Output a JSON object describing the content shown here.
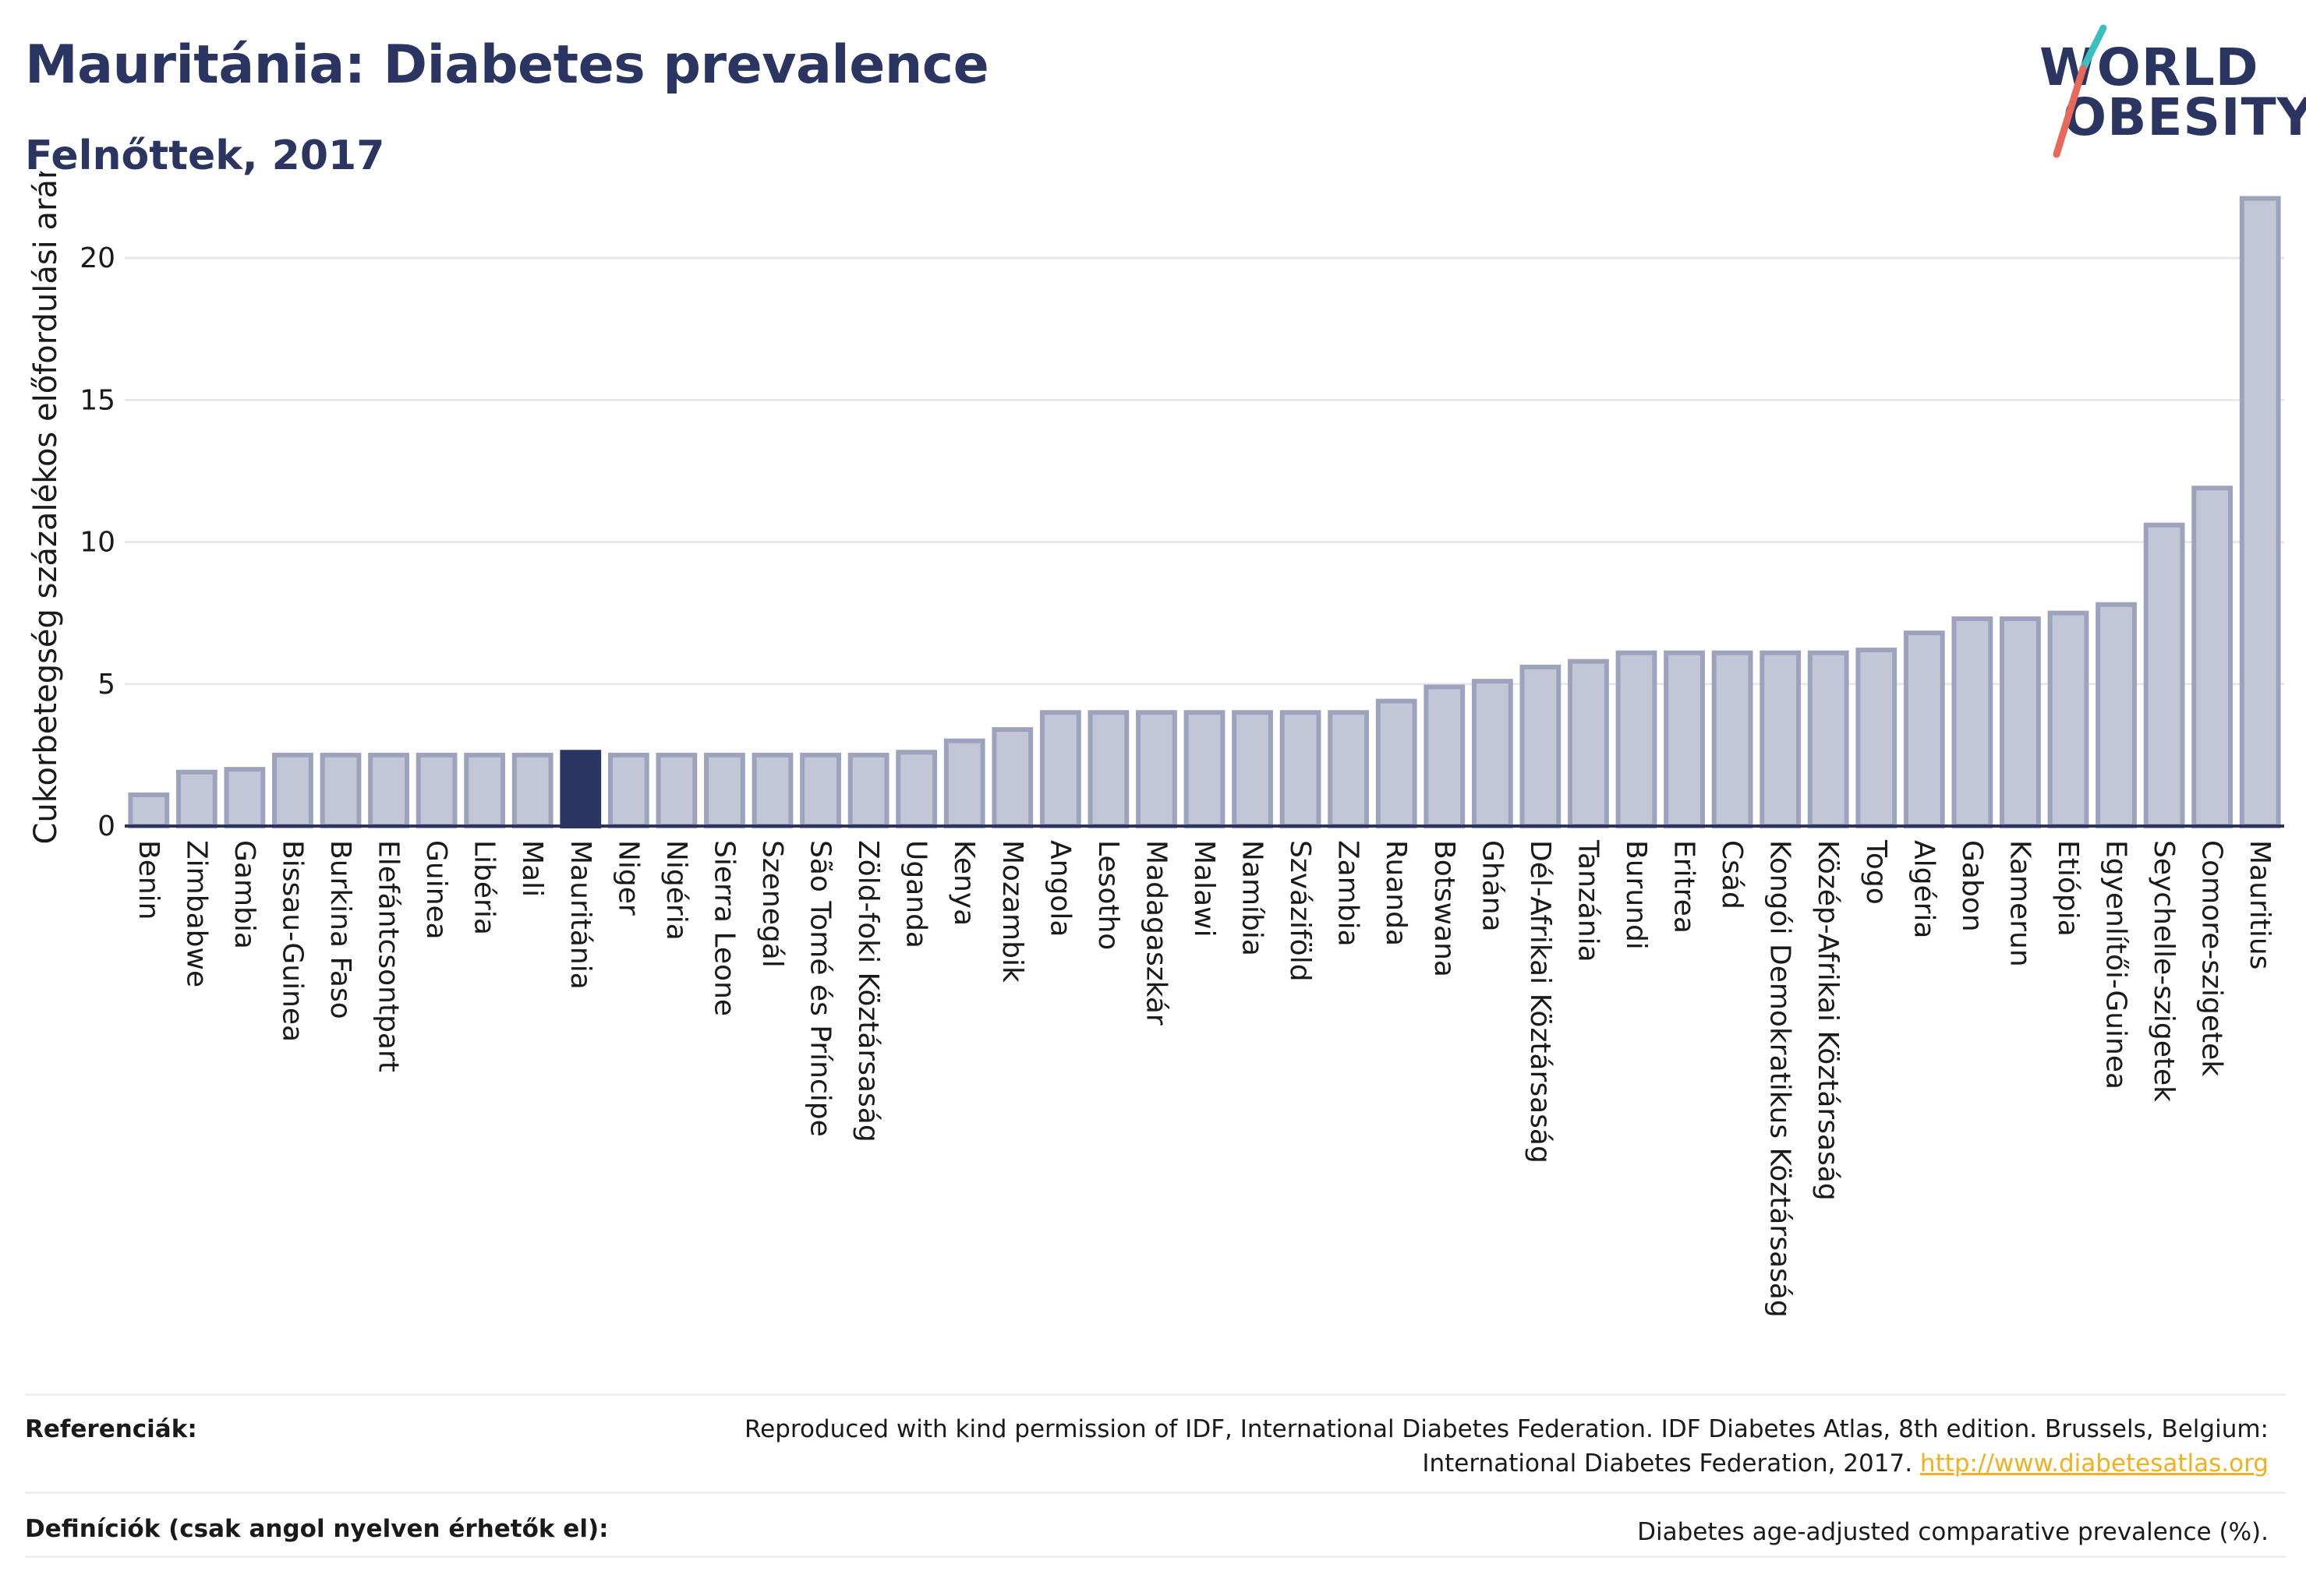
{
  "header": {
    "title": "Mauritánia: Diabetes prevalence",
    "subtitle": "Felnőttek, 2017"
  },
  "logo": {
    "line1": "WORLD",
    "line2": "OBESITY",
    "colors": {
      "text": "#2b3561",
      "slash_top": "#3bbfbf",
      "slash_bottom": "#e8685a"
    }
  },
  "chart_data": {
    "type": "bar",
    "ylabel": "Cukorbetegség százalékos előfordulási aránya",
    "xlabel": "",
    "ylim": [
      0,
      22.5
    ],
    "yticks": [
      0,
      5,
      10,
      15,
      20
    ],
    "grid": true,
    "highlight": "Mauritánia",
    "colors": {
      "bar": "#c2c6d6",
      "bar_edge": "#9da2bd",
      "highlight": "#2b3561",
      "grid": "#e6e8f0",
      "axis": "#2b3561"
    },
    "categories": [
      "Benin",
      "Zimbabwe",
      "Gambia",
      "Bissau-Guinea",
      "Burkina Faso",
      "Elefántcsontpart",
      "Guinea",
      "Libéria",
      "Mali",
      "Mauritánia",
      "Niger",
      "Nigéria",
      "Sierra Leone",
      "Szenegál",
      "São Tomé és Príncipe",
      "Zöld-foki Köztársaság",
      "Uganda",
      "Kenya",
      "Mozambik",
      "Angola",
      "Lesotho",
      "Madagaszkár",
      "Malawi",
      "Namíbia",
      "Szváziföld",
      "Zambia",
      "Ruanda",
      "Botswana",
      "Ghána",
      "Dél-Afrikai Köztársaság",
      "Tanzánia",
      "Burundi",
      "Eritrea",
      "Csád",
      "Kongói Demokratikus Köztársaság",
      "Közép-Afrikai Köztársaság",
      "Togo",
      "Algéria",
      "Gabon",
      "Kamerun",
      "Etiópia",
      "Egyenlítői-Guinea",
      "Seychelle-szigetek",
      "Comore-szigetek",
      "Mauritius"
    ],
    "values": [
      1.1,
      1.9,
      2.0,
      2.5,
      2.5,
      2.5,
      2.5,
      2.5,
      2.5,
      2.6,
      2.5,
      2.5,
      2.5,
      2.5,
      2.5,
      2.5,
      2.6,
      3.0,
      3.4,
      4.0,
      4.0,
      4.0,
      4.0,
      4.0,
      4.0,
      4.0,
      4.4,
      4.9,
      5.1,
      5.6,
      5.8,
      6.1,
      6.1,
      6.1,
      6.1,
      6.1,
      6.2,
      6.8,
      7.3,
      7.3,
      7.5,
      7.8,
      10.6,
      11.9,
      22.1
    ]
  },
  "footer": {
    "references_label": "Referenciák:",
    "references_line1": "Reproduced with kind permission of IDF, International Diabetes Federation. IDF Diabetes Atlas, 8th edition. Brussels, Belgium:",
    "references_line2": "International Diabetes Federation, 2017.",
    "references_link": "http://www.diabetesatlas.org",
    "definitions_label": "Definíciók (csak angol nyelven érhetők el):",
    "definitions_text": "Diabetes age-adjusted comparative prevalence (%)."
  }
}
